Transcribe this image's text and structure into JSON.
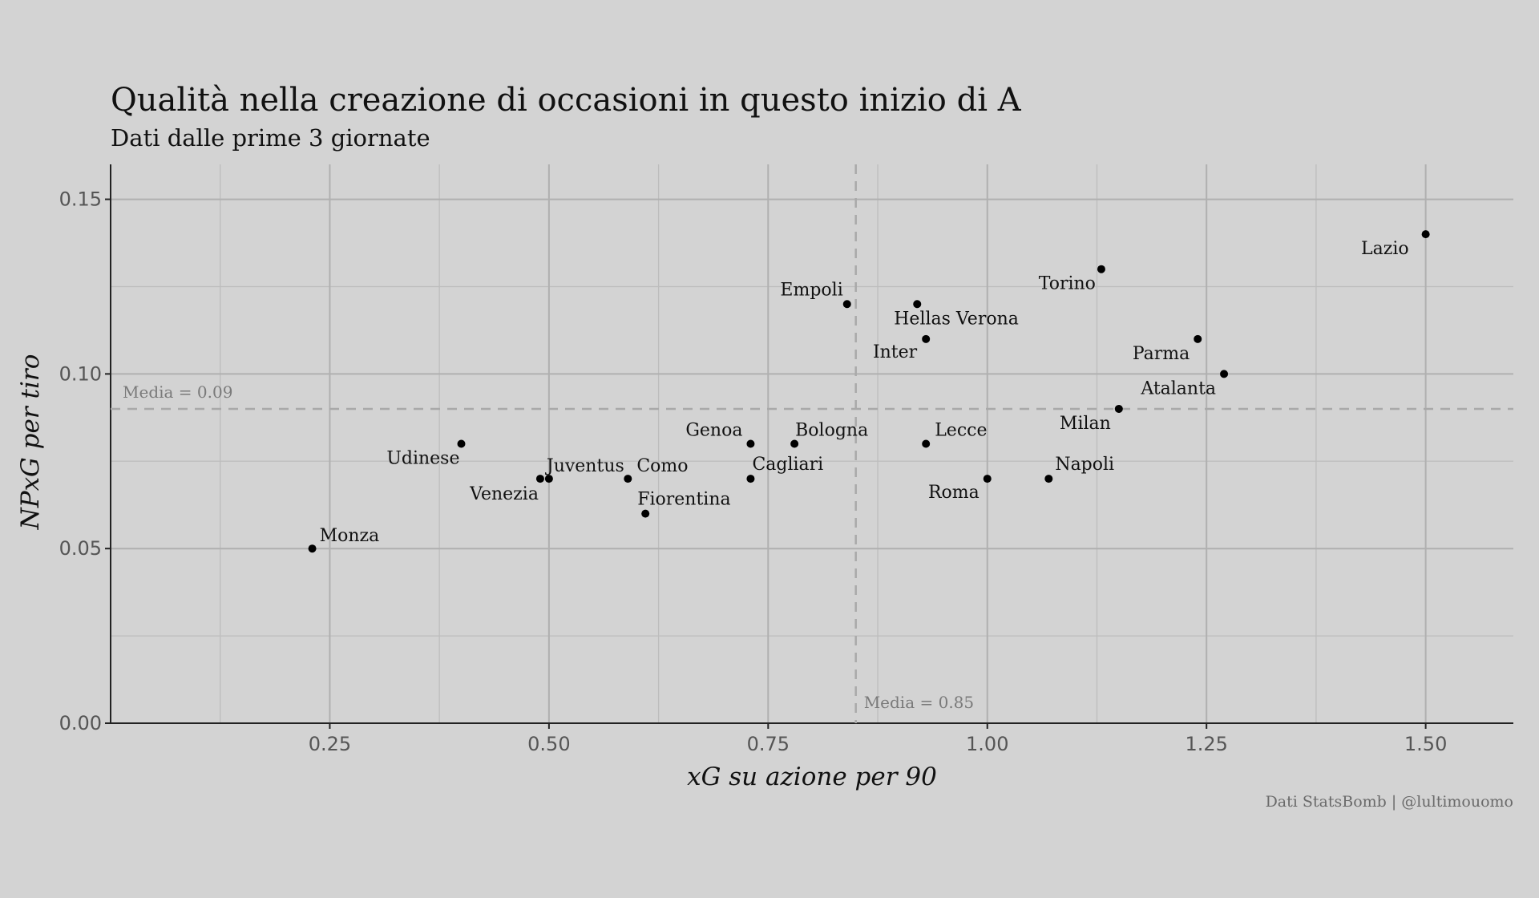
{
  "chart_data": {
    "type": "scatter",
    "title": "Qualità nella creazione di occasioni in questo inizio di A",
    "subtitle": "Dati dalle prime 3 giornate",
    "xlabel": "xG su azione per 90",
    "ylabel": "NPxG per tiro",
    "caption": "Dati StatsBomb | @lultimouomo",
    "xlim": [
      0,
      1.6
    ],
    "ylim": [
      0,
      0.16
    ],
    "x_ticks": [
      0.25,
      0.5,
      0.75,
      1.0,
      1.25,
      1.5
    ],
    "x_tick_labels": [
      "0.25",
      "0.50",
      "0.75",
      "1.00",
      "1.25",
      "1.50"
    ],
    "y_ticks": [
      0,
      0.05,
      0.1,
      0.15
    ],
    "y_tick_labels": [
      "0.00",
      "0.05",
      "0.10",
      "0.15"
    ],
    "grid": true,
    "reference_lines": [
      {
        "axis": "x",
        "value": 0.85,
        "label": "Media = 0.85"
      },
      {
        "axis": "y",
        "value": 0.09,
        "label": "Media = 0.09"
      }
    ],
    "points": [
      {
        "label": "Monza",
        "x": 0.23,
        "y": 0.05
      },
      {
        "label": "Udinese",
        "x": 0.4,
        "y": 0.08
      },
      {
        "label": "Venezia",
        "x": 0.49,
        "y": 0.07
      },
      {
        "label": "Juventus",
        "x": 0.5,
        "y": 0.07
      },
      {
        "label": "Como",
        "x": 0.59,
        "y": 0.07
      },
      {
        "label": "Fiorentina",
        "x": 0.61,
        "y": 0.06
      },
      {
        "label": "Genoa",
        "x": 0.73,
        "y": 0.08
      },
      {
        "label": "Cagliari",
        "x": 0.73,
        "y": 0.07
      },
      {
        "label": "Bologna",
        "x": 0.78,
        "y": 0.08
      },
      {
        "label": "Empoli",
        "x": 0.84,
        "y": 0.12
      },
      {
        "label": "Hellas Verona",
        "x": 0.92,
        "y": 0.12
      },
      {
        "label": "Inter",
        "x": 0.93,
        "y": 0.11
      },
      {
        "label": "Lecce",
        "x": 0.93,
        "y": 0.08
      },
      {
        "label": "Roma",
        "x": 1.0,
        "y": 0.07
      },
      {
        "label": "Napoli",
        "x": 1.07,
        "y": 0.07
      },
      {
        "label": "Torino",
        "x": 1.13,
        "y": 0.13
      },
      {
        "label": "Milan",
        "x": 1.15,
        "y": 0.09
      },
      {
        "label": "Parma",
        "x": 1.24,
        "y": 0.11
      },
      {
        "label": "Atalanta",
        "x": 1.27,
        "y": 0.1
      },
      {
        "label": "Lazio",
        "x": 1.5,
        "y": 0.14
      }
    ]
  }
}
